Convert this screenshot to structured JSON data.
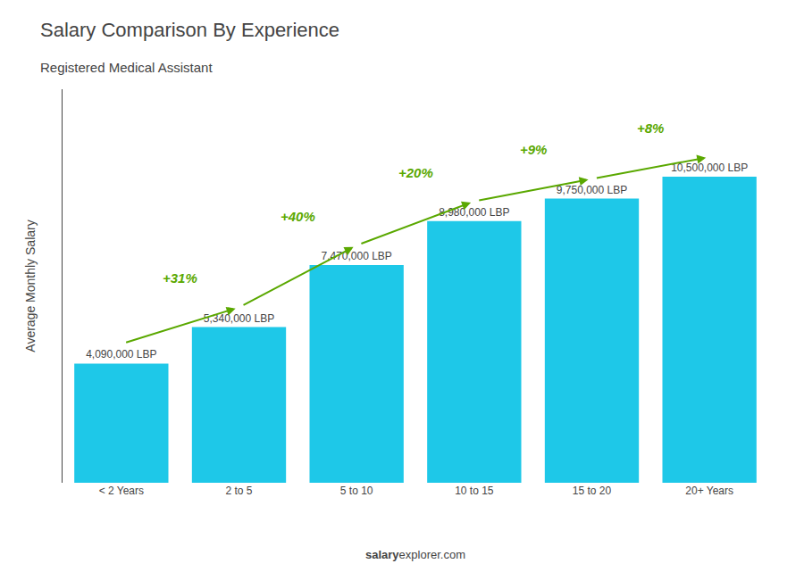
{
  "chart_data": {
    "type": "bar",
    "title": "Salary Comparison By Experience",
    "subtitle": "Registered Medical Assistant",
    "categories": [
      "< 2 Years",
      "2 to 5",
      "5 to 10",
      "10 to 15",
      "15 to 20",
      "20+ Years"
    ],
    "values": [
      4090000,
      5340000,
      7470000,
      8980000,
      9750000,
      10500000
    ],
    "value_labels": [
      "4,090,000 LBP",
      "5,340,000 LBP",
      "7,470,000 LBP",
      "8,980,000 LBP",
      "9,750,000 LBP",
      "10,500,000 LBP"
    ],
    "data_labels": true,
    "annotations": [
      "+31%",
      "+40%",
      "+20%",
      "+9%",
      "+8%"
    ],
    "ylabel": "Average Monthly Salary",
    "footer": [
      "salary",
      "explorer.com"
    ],
    "ylim": [
      0,
      13500000
    ],
    "tick_labels": "x",
    "grid": false,
    "color": "#1EC8E8"
  }
}
